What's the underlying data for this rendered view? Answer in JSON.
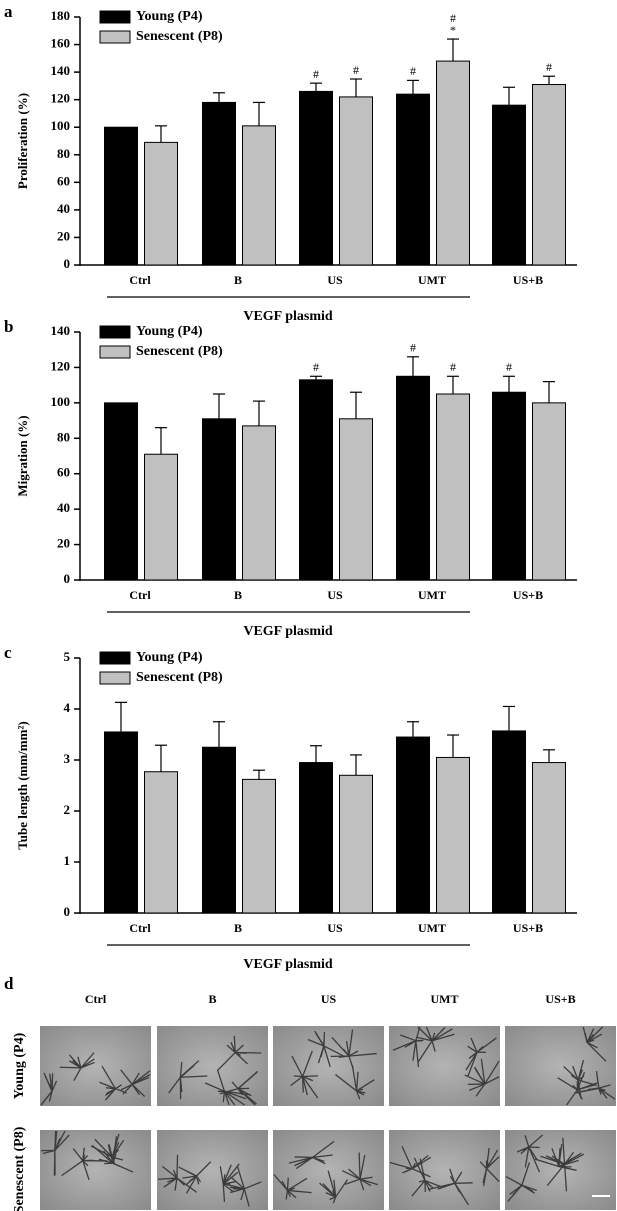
{
  "chart_data": [
    {
      "type": "bar",
      "panel": "a",
      "ylabel": "Proliferation (%)",
      "group_label": "VEGF plasmid",
      "categories": [
        "Ctrl",
        "B",
        "US",
        "UMT",
        "US+B"
      ],
      "ylim": [
        0,
        180
      ],
      "yticks": [
        0,
        20,
        40,
        60,
        80,
        100,
        120,
        140,
        160,
        180
      ],
      "series": [
        {
          "name": "Young (P4)",
          "color": "#000000",
          "values": [
            100,
            118,
            126,
            124,
            116
          ],
          "errors": [
            null,
            7,
            6,
            10,
            13
          ],
          "annotations": [
            null,
            null,
            [
              "#"
            ],
            [
              "#"
            ],
            null
          ]
        },
        {
          "name": "Senescent (P8)",
          "color": "#c0c0c0",
          "values": [
            89,
            101,
            122,
            148,
            131
          ],
          "errors": [
            12,
            17,
            13,
            16,
            6
          ],
          "annotations": [
            null,
            null,
            [
              "#"
            ],
            [
              "#",
              "*"
            ],
            [
              "#"
            ]
          ]
        }
      ]
    },
    {
      "type": "bar",
      "panel": "b",
      "ylabel": "Migration (%)",
      "group_label": "VEGF plasmid",
      "categories": [
        "Ctrl",
        "B",
        "US",
        "UMT",
        "US+B"
      ],
      "ylim": [
        0,
        140
      ],
      "yticks": [
        0,
        20,
        40,
        60,
        80,
        100,
        120,
        140
      ],
      "series": [
        {
          "name": "Young (P4)",
          "color": "#000000",
          "values": [
            100,
            91,
            113,
            115,
            106
          ],
          "errors": [
            null,
            14,
            2,
            11,
            9
          ],
          "annotations": [
            null,
            null,
            [
              "#"
            ],
            [
              "#"
            ],
            [
              "#"
            ]
          ]
        },
        {
          "name": "Senescent (P8)",
          "color": "#c0c0c0",
          "values": [
            71,
            87,
            91,
            105,
            100
          ],
          "errors": [
            15,
            14,
            15,
            10,
            12
          ],
          "annotations": [
            null,
            null,
            null,
            [
              "#"
            ],
            null
          ]
        }
      ]
    },
    {
      "type": "bar",
      "panel": "c",
      "ylabel": "Tube length (mm/mm²)",
      "group_label": "VEGF plasmid",
      "categories": [
        "Ctrl",
        "B",
        "US",
        "UMT",
        "US+B"
      ],
      "ylim": [
        0,
        5
      ],
      "yticks": [
        0,
        1,
        2,
        3,
        4,
        5
      ],
      "series": [
        {
          "name": "Young (P4)",
          "color": "#000000",
          "values": [
            3.55,
            3.25,
            2.95,
            3.45,
            3.57
          ],
          "errors": [
            0.58,
            0.5,
            0.33,
            0.3,
            0.48
          ],
          "annotations": [
            null,
            null,
            null,
            null,
            null
          ]
        },
        {
          "name": "Senescent (P8)",
          "color": "#c0c0c0",
          "values": [
            2.77,
            2.62,
            2.7,
            3.05,
            2.95
          ],
          "errors": [
            0.52,
            0.18,
            0.4,
            0.44,
            0.25
          ],
          "annotations": [
            null,
            null,
            null,
            null,
            null
          ]
        }
      ]
    }
  ],
  "panel_d": {
    "panel": "d",
    "columns": [
      "Ctrl",
      "B",
      "US",
      "UMT",
      "US+B"
    ],
    "rows": [
      "Young (P4)",
      "Senescent (P8)"
    ]
  }
}
